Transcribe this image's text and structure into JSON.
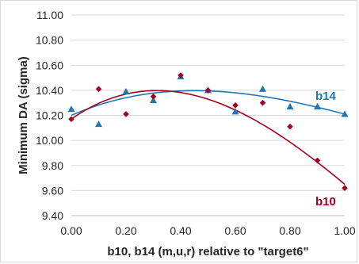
{
  "chart_data": {
    "type": "scatter",
    "title": "",
    "xlabel": "b10, b14 (m,u,r) relative to \"target6\"",
    "ylabel": "Minimum DA (sigma)",
    "xlim": [
      0,
      1
    ],
    "ylim": [
      9.4,
      11.0
    ],
    "x_ticks": [
      "0.00",
      "0.20",
      "0.40",
      "0.60",
      "0.80",
      "1.00"
    ],
    "y_ticks": [
      "9.40",
      "9.60",
      "9.80",
      "10.00",
      "10.20",
      "10.40",
      "10.60",
      "10.80",
      "11.00"
    ],
    "grid": "horizontal",
    "legend": "none",
    "series": [
      {
        "name": "b14",
        "color": "#1f77b4",
        "marker": "triangle",
        "x": [
          0.0,
          0.1,
          0.2,
          0.3,
          0.4,
          0.5,
          0.6,
          0.7,
          0.8,
          0.9,
          1.0
        ],
        "y": [
          10.25,
          10.13,
          10.39,
          10.32,
          10.51,
          10.4,
          10.23,
          10.41,
          10.27,
          10.27,
          10.21
        ],
        "trend": "polynomial",
        "trend_coeffs": [
          10.2,
          0.95,
          -1.3,
          0.36
        ]
      },
      {
        "name": "b10",
        "color": "#a50021",
        "marker": "diamond",
        "x": [
          0.0,
          0.1,
          0.2,
          0.3,
          0.4,
          0.5,
          0.6,
          0.7,
          0.8,
          0.9,
          1.0
        ],
        "y": [
          10.17,
          10.41,
          10.21,
          10.35,
          10.52,
          10.4,
          10.28,
          10.3,
          10.11,
          9.84,
          9.62
        ],
        "trend": "polynomial",
        "trend_coeffs": [
          10.17,
          1.53,
          -2.8,
          0.75
        ]
      }
    ]
  }
}
